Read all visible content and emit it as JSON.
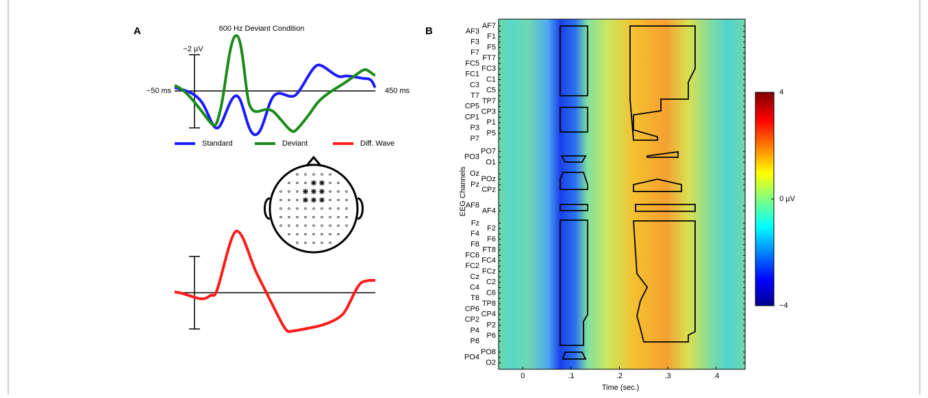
{
  "panel_a": {
    "label": "A",
    "title": "600 Hz Deviant Condition",
    "scale_label": "−2 µV",
    "x_start": "−50 ms",
    "x_end": "450 ms",
    "legend": [
      {
        "name": "Standard",
        "color": "#1a1aff"
      },
      {
        "name": "Deviant",
        "color": "#1a8a1a"
      },
      {
        "name": "Diff. Wave",
        "color": "#ff1a1a"
      }
    ]
  },
  "chart_data": {
    "type": "heatmap",
    "label": "B",
    "y_label": "EEG Channels",
    "x_label": "Time (sec.)",
    "xlim": [
      -0.05,
      0.46
    ],
    "xticks": [
      0,
      {
        "value": 0.1,
        "label": ".1"
      },
      {
        "value": 0.2,
        "label": ".2"
      },
      {
        "value": 0.3,
        "label": ".3"
      },
      {
        "value": 0.4,
        "label": ".4"
      }
    ],
    "channels": [
      "AF7",
      "AF3",
      "F1",
      "F3",
      "F5",
      "F7",
      "FT7",
      "FC5",
      "FC3",
      "FC1",
      "C1",
      "C3",
      "C5",
      "T7",
      "TP7",
      "CP5",
      "CP3",
      "CP1",
      "P1",
      "P3",
      "P5",
      "P7",
      "PO7",
      "PO3",
      "O1",
      "Oz",
      "POz",
      "Pz",
      "CPz",
      "AF8",
      "AF4",
      "Fz",
      "F2",
      "F4",
      "F6",
      "F8",
      "FT8",
      "FC6",
      "FC4",
      "FC2",
      "FCz",
      "Cz",
      "C2",
      "C4",
      "C6",
      "T8",
      "TP8",
      "CP6",
      "CP4",
      "CP2",
      "P2",
      "P4",
      "P6",
      "P8",
      "PO8",
      "PO4",
      "O2"
    ],
    "colorbar": {
      "lim": [
        -4,
        4
      ],
      "ticks": [
        {
          "value": -4,
          "label": "−4"
        },
        {
          "value": 0,
          "label": "0 µV"
        },
        4
      ]
    }
  }
}
